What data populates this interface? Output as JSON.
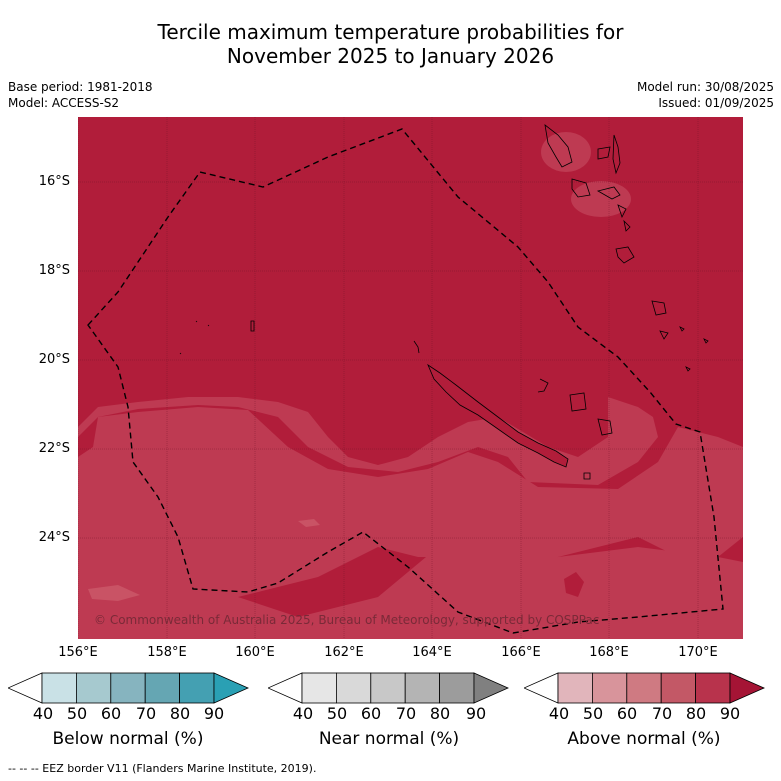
{
  "title": {
    "line1": "Tercile maximum temperature probabilities for",
    "line2": "November 2025 to January 2026"
  },
  "meta": {
    "base_period": "Base period: 1981-2018",
    "model": "Model: ACCESS-S2",
    "model_run": "Model run: 30/08/2025",
    "issued": "Issued: 01/09/2025"
  },
  "map": {
    "copyright": "© Commonwealth of Australia 2025, Bureau of Meteorology, supported by COSPPac",
    "y_ticks": [
      "16°S",
      "18°S",
      "20°S",
      "22°S",
      "24°S"
    ],
    "x_ticks": [
      "156°E",
      "158°E",
      "160°E",
      "162°E",
      "164°E",
      "166°E",
      "168°E",
      "170°E"
    ],
    "colors": {
      "above_90": "#b11d3a",
      "above_80": "#be3a52",
      "above_70": "#c95365",
      "ocean_bg": "#b11d3a"
    }
  },
  "legend": {
    "ticks": [
      "40",
      "50",
      "60",
      "70",
      "80",
      "90"
    ],
    "below": {
      "label": "Below normal (%)",
      "colors": [
        "#ffffff",
        "#c9e1e6",
        "#a6c9cf",
        "#86b4bf",
        "#65a6b3",
        "#44a0b2",
        "#2aa0b4"
      ]
    },
    "near": {
      "label": "Near normal (%)",
      "colors": [
        "#ffffff",
        "#e6e6e6",
        "#d9d9d9",
        "#c8c8c8",
        "#b4b4b4",
        "#9c9c9c",
        "#808080"
      ]
    },
    "above": {
      "label": "Above normal (%)",
      "colors": [
        "#ffffff",
        "#e1b5bb",
        "#d8949b",
        "#cf7a82",
        "#c35866",
        "#b8334c",
        "#a51435"
      ]
    }
  },
  "footnote": "--  --  -- EEZ border V11 (Flanders Marine Institute, 2019)."
}
